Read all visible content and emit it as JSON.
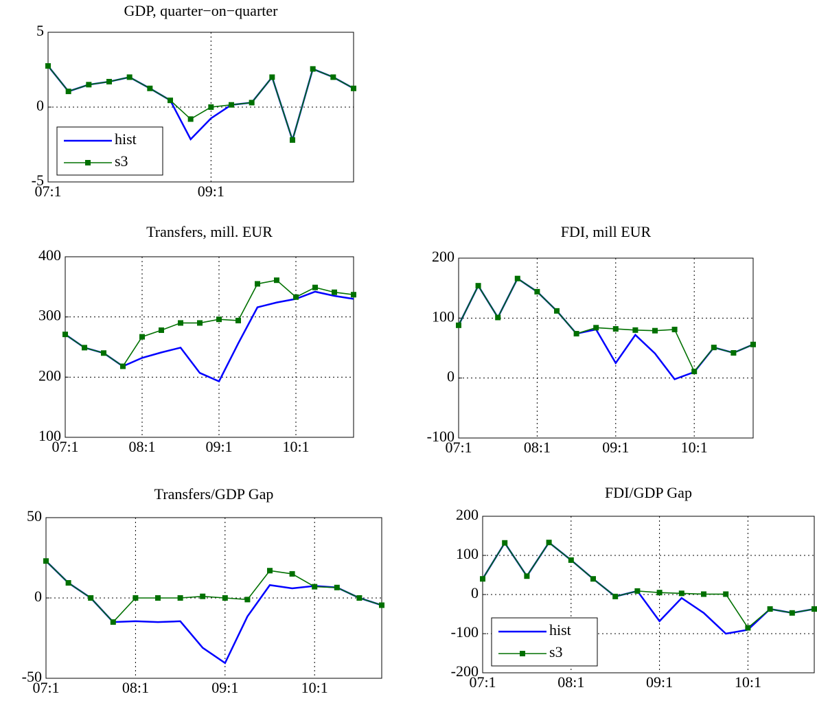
{
  "chart_data": [
    {
      "type": "line",
      "title": "GDP, quarter−on−quarter",
      "categories": [
        "07:1",
        null,
        null,
        null,
        null,
        null,
        null,
        null,
        "09:1",
        null,
        null,
        null,
        null,
        null,
        null,
        null
      ],
      "series": [
        {
          "name": "hist",
          "color": "#0000ff",
          "values": [
            2.75,
            1.05,
            1.5,
            1.7,
            2.0,
            1.25,
            0.45,
            -2.15,
            -0.75,
            0.15,
            0.3,
            2.0,
            -2.2,
            2.55,
            2.0,
            1.25
          ]
        },
        {
          "name": "s3",
          "color": "#007000",
          "values": [
            2.75,
            1.05,
            1.5,
            1.7,
            2.0,
            1.25,
            0.45,
            -0.8,
            0.0,
            0.15,
            0.3,
            2.0,
            -2.2,
            2.55,
            2.0,
            1.25
          ]
        }
      ],
      "ylim": [
        -5,
        5
      ],
      "yticks": [
        -5,
        0,
        5
      ],
      "grid": true,
      "legend": "lower left"
    },
    {
      "type": "line",
      "title": "Transfers, mill. EUR",
      "categories": [
        "07:1",
        null,
        null,
        null,
        "08:1",
        null,
        null,
        null,
        "09:1",
        null,
        null,
        null,
        "10:1",
        null,
        null,
        null
      ],
      "series": [
        {
          "name": "hist",
          "color": "#0000ff",
          "values": [
            271,
            249,
            240,
            218,
            232,
            241,
            249,
            207,
            193,
            256,
            316,
            324,
            330,
            342,
            335,
            330
          ]
        },
        {
          "name": "s3",
          "color": "#007000",
          "values": [
            271,
            249,
            240,
            218,
            267,
            278,
            290,
            290,
            296,
            294,
            355,
            361,
            333,
            349,
            341,
            337
          ]
        }
      ],
      "ylim": [
        100,
        400
      ],
      "yticks": [
        100,
        200,
        300,
        400
      ],
      "grid": true
    },
    {
      "type": "line",
      "title": "FDI, mill EUR",
      "categories": [
        "07:1",
        null,
        null,
        null,
        "08:1",
        null,
        null,
        null,
        "09:1",
        null,
        null,
        null,
        "10:1",
        null,
        null,
        null
      ],
      "series": [
        {
          "name": "hist",
          "color": "#0000ff",
          "values": [
            88,
            154,
            101,
            166,
            144,
            112,
            74,
            81,
            25,
            72,
            41,
            -2,
            10,
            51,
            42,
            56
          ]
        },
        {
          "name": "s3",
          "color": "#007000",
          "values": [
            88,
            154,
            101,
            166,
            144,
            112,
            74,
            84,
            82,
            80,
            79,
            81,
            11,
            51,
            42,
            56
          ]
        }
      ],
      "ylim": [
        -100,
        200
      ],
      "yticks": [
        -100,
        0,
        100,
        200
      ],
      "grid": true
    },
    {
      "type": "line",
      "title": "Transfers/GDP Gap",
      "categories": [
        "07:1",
        null,
        null,
        null,
        "08:1",
        null,
        null,
        null,
        "09:1",
        null,
        null,
        null,
        "10:1",
        null,
        null,
        null
      ],
      "series": [
        {
          "name": "hist",
          "color": "#0000ff",
          "values": [
            23,
            9.4,
            0,
            -15,
            -14.5,
            -15,
            -14.5,
            -31,
            -40.5,
            -11.5,
            8,
            6,
            7.5,
            6.5,
            0,
            -4.5
          ]
        },
        {
          "name": "s3",
          "color": "#007000",
          "values": [
            23,
            9.4,
            0,
            -15,
            0,
            0,
            0,
            1,
            0,
            -1,
            17,
            15,
            7,
            6.5,
            0,
            -4.5
          ]
        }
      ],
      "ylim": [
        -50,
        50
      ],
      "yticks": [
        -50,
        0,
        50
      ],
      "grid": true
    },
    {
      "type": "line",
      "title": "FDI/GDP Gap",
      "categories": [
        "07:1",
        null,
        null,
        null,
        "08:1",
        null,
        null,
        null,
        "09:1",
        null,
        null,
        null,
        "10:1",
        null,
        null,
        null
      ],
      "series": [
        {
          "name": "hist",
          "color": "#0000ff",
          "values": [
            40,
            132,
            47,
            133,
            88,
            40,
            -5,
            9,
            -68,
            -9,
            -47,
            -100,
            -90,
            -37,
            -47,
            -37
          ]
        },
        {
          "name": "s3",
          "color": "#007000",
          "values": [
            40,
            132,
            47,
            133,
            88,
            40,
            -5,
            9,
            5,
            3,
            1,
            1,
            -85,
            -37,
            -47,
            -37
          ]
        }
      ],
      "ylim": [
        -200,
        200
      ],
      "yticks": [
        -200,
        -100,
        0,
        100,
        200
      ],
      "grid": true,
      "legend": "lower left"
    }
  ]
}
